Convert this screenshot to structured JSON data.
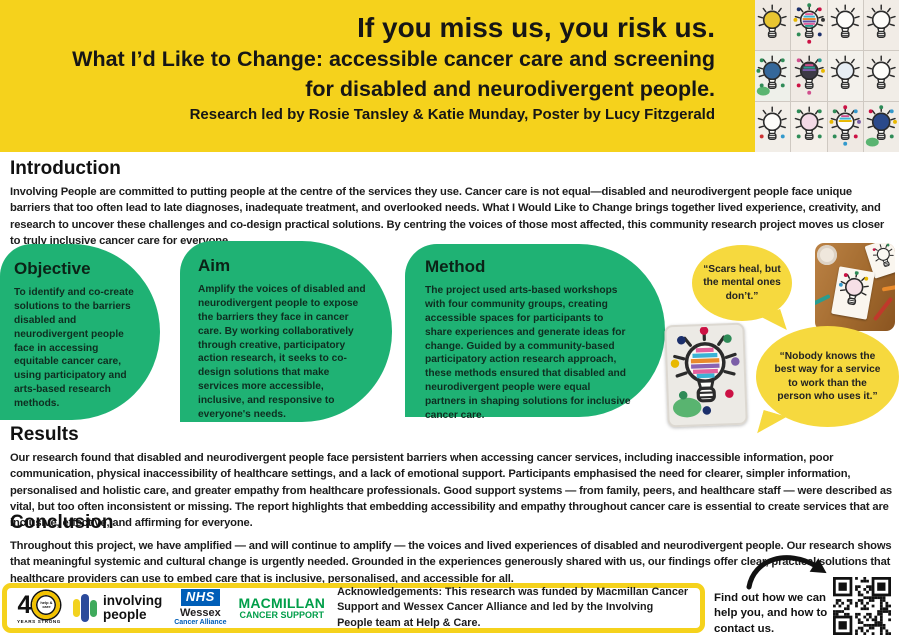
{
  "header": {
    "line1": "If you miss us, you risk us.",
    "line2": "What I’d Like to Change: accessible cancer care and screening",
    "line3": "for disabled and neurodivergent people.",
    "byline": "Research led by Rosie Tansley & Katie Munday, Poster by Lucy Fitzgerald"
  },
  "intro": {
    "heading": "Introduction",
    "body": "Involving People are committed to putting people at the centre of the services they use.  Cancer care is not equal—disabled and neurodivergent people face unique barriers that too often lead to late diagnoses, inadequate treatment, and overlooked needs. What I Would Like to Change brings together lived experience, creativity, and research to uncover these challenges and co-design practical solutions. By centring the voices of those most affected, this community research project moves us closer to truly inclusive cancer care for everyone."
  },
  "objective": {
    "heading": "Objective",
    "body": "To identify and co-create solutions to the barriers disabled and neurodivergent people face in accessing equitable cancer care, using participatory and arts-based research methods."
  },
  "aim": {
    "heading": "Aim",
    "body": "Amplify the voices of disabled and neurodivergent people to expose the barriers they face in cancer care. By working collaboratively through creative, participatory action research, it seeks to co-design solutions that make services more accessible, inclusive, and responsive to everyone's needs."
  },
  "method": {
    "heading": "Method",
    "body": "The project used arts-based workshops with four community groups, creating accessible spaces for participants to share experiences and generate ideas for change. Guided by a community-based participatory action research approach, these methods ensured that disabled and neurodivergent people were equal partners in shaping solutions for inclusive cancer care."
  },
  "results": {
    "heading": "Results",
    "body": "Our research found that disabled and neurodivergent people face persistent barriers when accessing cancer services, including inaccessible information, poor communication, physical inaccessibility of healthcare settings, and a lack of emotional support. Participants emphasised the need for clearer, simpler information, personalised and holistic care, and greater empathy from healthcare professionals. Good support systems — from family, peers, and healthcare staff — were described as vital, but too often inconsistent or missing. The report highlights that embedding accessibility and empathy throughout cancer care is essential to create services that are inclusive, effective, and affirming for everyone."
  },
  "conclusion": {
    "heading": "Conclusion",
    "body": "Throughout this project, we have amplified — and will continue to amplify — the voices and lived experiences of disabled and neurodivergent people. Our research shows that meaningful systemic and cultural change is urgently needed. Grounded in the experiences generously shared with us, our findings offer clear, practical solutions that healthcare providers can use to embed care that is inclusive, personalised, and accessible for all."
  },
  "quotes": [
    {
      "text": "“Scars heal, but the mental ones don’t.”"
    },
    {
      "text": "“Nobody knows the best way for a service to work than the person who uses it.”"
    }
  ],
  "footer": {
    "acknowledgements": "Acknowledgements: This research was funded by Macmillan Cancer Support and Wessex Cancer Alliance and led by the Involving People team at Help & Care.",
    "contact_note": "Find out how we can help you, and how to contact us.",
    "logos": {
      "forty": {
        "number": "4",
        "ring_text": "help & care",
        "sub": "YEARS STRONG"
      },
      "involving_line1": "involving",
      "involving_line2": "people",
      "nhs_abbr": "NHS",
      "nhs_region": "Wessex",
      "nhs_sub": "Cancer Alliance",
      "mac_line1": "MACMILLAN",
      "mac_line2": "CANCER SUPPORT"
    }
  },
  "colors": {
    "header_yellow": "#f5d21c",
    "quote_yellow": "#f6d93e",
    "bubble_green": "#1fb274",
    "nhs_blue": "#005EB8",
    "macmillan_green": "#009E49"
  },
  "bulbs": {
    "wall": [
      {
        "paper": "#efe9e2",
        "fill": "#e8c531"
      },
      {
        "paper": "#f2ece5",
        "fill": "#fbf8f3",
        "stripes": [
          "#e35f9d",
          "#3bb3d4",
          "#e98a2b",
          "#5a4fa2",
          "#e35f9d",
          "#2a9d8f"
        ],
        "dots": [
          "#1b2f6b",
          "#2e8b57",
          "#cc1144",
          "#e8b800",
          "#333333",
          "#2e8b57",
          "#1b2f6b",
          "#cc1144"
        ]
      },
      {
        "paper": "#f4f0ea"
      },
      {
        "paper": "#f1ece6"
      },
      {
        "paper": "#eef0ea",
        "fill": "#35689b",
        "splash": "#3faa5c",
        "dots": [
          "#2e8b57",
          "",
          "#2e8b57",
          "#2e8b57",
          "",
          "#2e8b57",
          "#2e8b57",
          ""
        ]
      },
      {
        "paper": "#f0eae4",
        "fill": "#3d3a45",
        "stripes": [
          "#d14f8e",
          "#2a9d8f",
          "#7b5ea7"
        ],
        "dots": [
          "#d14f8e",
          "",
          "#2a9d8f",
          "",
          "#e8b800",
          "#cc1144",
          "",
          "#d14f8e"
        ]
      },
      {
        "paper": "#f3f1ec",
        "fill": "#e7eef5"
      },
      {
        "paper": "#f1ede7"
      },
      {
        "paper": "#f2eee8",
        "dots": [
          "",
          "",
          "",
          "",
          "",
          "#cc3333",
          "#3399cc",
          ""
        ]
      },
      {
        "paper": "#f4efe9",
        "fill": "#f3d9e6",
        "dots": [
          "#2e8b57",
          "",
          "#2e8b57",
          "",
          "",
          "#2e8b57",
          "#2e8b57",
          ""
        ]
      },
      {
        "paper": "#efe9e3",
        "fill": "#fdfdfd",
        "stripes": [
          "#d14f8e",
          "#3bb3d4",
          "#e8b800"
        ],
        "dots": [
          "#2e8b57",
          "#cc1144",
          "#3399cc",
          "#e8b800",
          "#7b5ea7",
          "#2e8b57",
          "#cc1144",
          "#3399cc"
        ]
      },
      {
        "paper": "#f0ece6",
        "fill": "#2b4a8b",
        "splash": "#3faa5c",
        "dots": [
          "#cc1144",
          "#2e8b57",
          "#3399cc",
          "",
          "#e8b800",
          "",
          "#2e8b57",
          ""
        ]
      }
    ],
    "workshop": [
      {
        "fill": "#f6dfe6",
        "dots": [
          "#cc1144",
          "#2e8b57",
          "#e8b800",
          "#3399cc",
          "",
          "",
          "",
          ""
        ]
      },
      {
        "fill": "#fbf8f3",
        "dots": [
          "#cc1144",
          "",
          "#2e8b57",
          "",
          "",
          "",
          "",
          ""
        ]
      }
    ],
    "art": [
      {
        "fill": "#fbf8f3",
        "stripes": [
          "#e35f9d",
          "#3bb3d4",
          "#e98a2b",
          "#8a63b3",
          "#e35f9d",
          "#3bb3d4"
        ],
        "dots": [
          "#1b2f6b",
          "#cc1144",
          "#2e8b57",
          "#e8b800",
          "#7b5ea7",
          "#2e8b57",
          "#cc1144",
          "#1b2f6b"
        ],
        "splash": "#3faa5c"
      }
    ]
  }
}
